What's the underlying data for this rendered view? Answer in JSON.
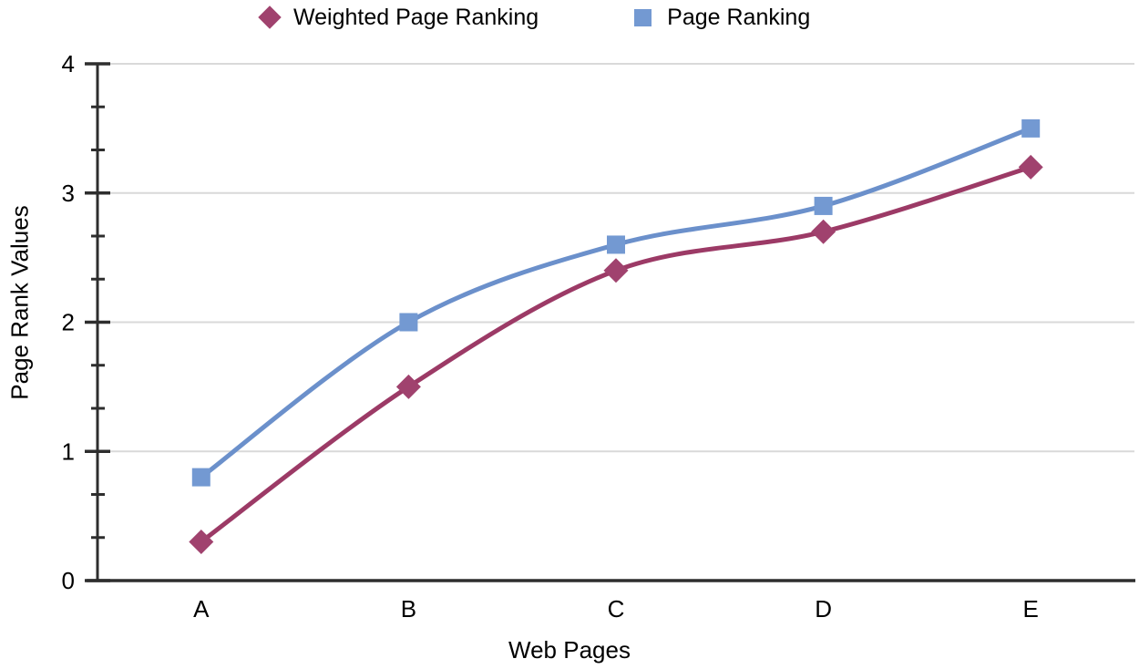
{
  "chart_data": {
    "type": "line",
    "categories": [
      "A",
      "B",
      "C",
      "D",
      "E"
    ],
    "series": [
      {
        "name": "Weighted Page Ranking",
        "marker": "diamond",
        "line_color": "#9C3A66",
        "marker_color": "#A0426E",
        "values": [
          0.3,
          1.5,
          2.4,
          2.7,
          3.2
        ]
      },
      {
        "name": "Page Ranking",
        "marker": "square",
        "line_color": "#6B90CB",
        "marker_color": "#7399D2",
        "values": [
          0.8,
          2.0,
          2.6,
          2.9,
          3.5
        ]
      }
    ],
    "xlabel": "Web Pages",
    "ylabel": "Page Rank Values",
    "ylim": [
      0,
      4
    ],
    "y_ticks": [
      "0",
      "1",
      "2",
      "3",
      "4"
    ],
    "y_major_step": 1,
    "y_minor_divisions": 3,
    "grid": "horizontal-major",
    "legend_position": "top",
    "smooth_lines": true
  },
  "colors": {
    "background": "#FFFFFF",
    "gridline": "#D9D9D9",
    "axis": "#2E2E2E",
    "text": "#000000"
  }
}
